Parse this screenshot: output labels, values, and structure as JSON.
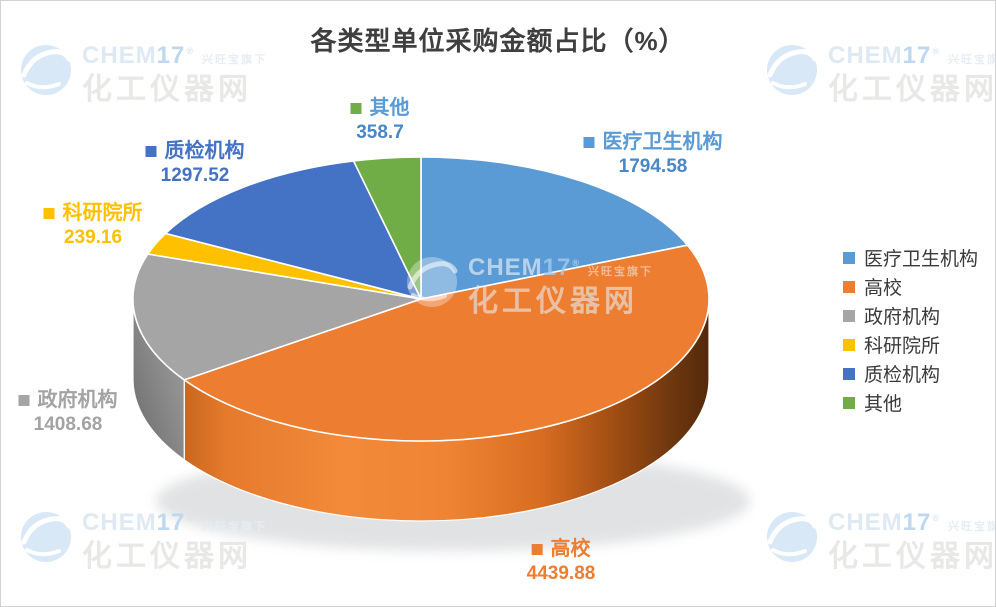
{
  "header": {
    "title": "各类型单位采购金额占比（%）"
  },
  "chart_data": {
    "type": "pie",
    "style": "3d-pie",
    "title": "各类型单位采购金额占比（%）",
    "categories": [
      "医疗卫生机构",
      "高校",
      "政府机构",
      "科研院所",
      "质检机构",
      "其他"
    ],
    "values": [
      1794.58,
      4439.88,
      1408.68,
      239.16,
      1297.52,
      358.7
    ],
    "percentages": [
      18.8,
      46.6,
      14.8,
      2.5,
      13.6,
      3.8
    ],
    "colors": [
      "#5B9BD5",
      "#ED7D31",
      "#A5A5A5",
      "#FFC000",
      "#4472C4",
      "#70AD47"
    ],
    "start_angle_deg": 0,
    "direction": "clockwise",
    "legend_position": "right",
    "data_labels_shown": true
  },
  "data_labels": [
    {
      "name": "医疗卫生机构",
      "value": "1794.58",
      "bullet_color": "#5B9BD5",
      "name_color": "#5B9BD5",
      "value_color": "#4A87C6"
    },
    {
      "name": "高校",
      "value": "4439.88",
      "bullet_color": "#ED7D31",
      "name_color": "#ED7D31",
      "value_color": "#ED7D31"
    },
    {
      "name": "政府机构",
      "value": "1408.68",
      "bullet_color": "#A5A5A5",
      "name_color": "#A3A3A3",
      "value_color": "#A3A3A3"
    },
    {
      "name": "科研院所",
      "value": "239.16",
      "bullet_color": "#FFC000",
      "name_color": "#FFC000",
      "value_color": "#FFC000"
    },
    {
      "name": "质检机构",
      "value": "1297.52",
      "bullet_color": "#4472C4",
      "name_color": "#4472C4",
      "value_color": "#4472C4"
    },
    {
      "name": "其他",
      "value": "358.7",
      "bullet_color": "#70AD47",
      "name_color": "#5B9BD5",
      "value_color": "#4A87C6"
    }
  ],
  "legend": {
    "items": [
      {
        "label": "医疗卫生机构",
        "color": "#5B9BD5"
      },
      {
        "label": "高校",
        "color": "#ED7D31"
      },
      {
        "label": "政府机构",
        "color": "#A5A5A5"
      },
      {
        "label": "科研院所",
        "color": "#FFC000"
      },
      {
        "label": "质检机构",
        "color": "#4472C4"
      },
      {
        "label": "其他",
        "color": "#70AD47"
      }
    ]
  },
  "watermark": {
    "brand_prefix": "CHEM",
    "brand_suffix": "17",
    "registered": "®",
    "tagline": "兴旺宝旗下",
    "site_name": "化工仪器网"
  }
}
